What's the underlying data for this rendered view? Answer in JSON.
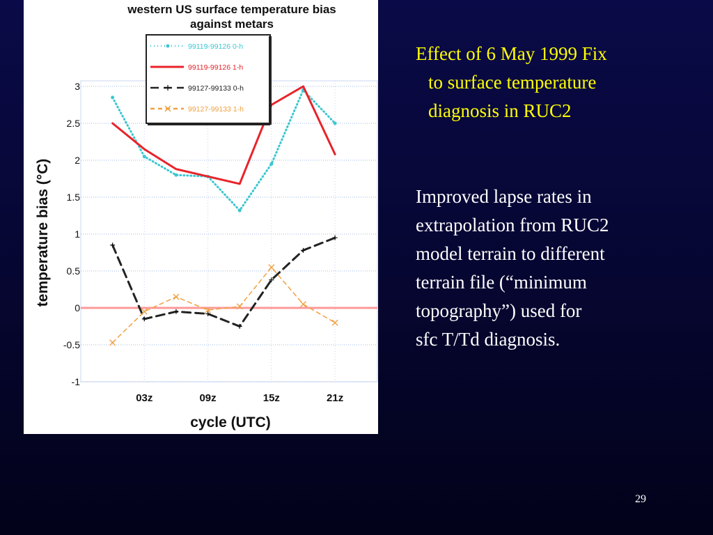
{
  "slide": {
    "title_lines": [
      "Effect of 6 May 1999 Fix",
      "to surface temperature",
      "diagnosis in RUC2"
    ],
    "body_lines": [
      "Improved lapse rates in",
      "extrapolation from RUC2",
      "model terrain to different",
      "terrain file (“minimum",
      "topography”) used for",
      "sfc T/Td diagnosis."
    ],
    "page_number": "29",
    "title_color": "#ffff00",
    "body_color": "#ffffff"
  },
  "chart_data": {
    "type": "line",
    "title": [
      "western US surface temperature bias",
      "against metars"
    ],
    "xlabel": "cycle (UTC)",
    "ylabel": "temperature bias (°C)",
    "x_tick_labels": [
      "03z",
      "09z",
      "15z",
      "21z"
    ],
    "x_tick_positions": [
      3,
      9,
      15,
      21
    ],
    "xlim": [
      -3,
      25
    ],
    "ylim": [
      -1,
      3
    ],
    "y_ticks": [
      -1,
      -0.5,
      0,
      0.5,
      1,
      1.5,
      2,
      2.5,
      3
    ],
    "y_tick_labels": [
      "-1",
      "-0.5",
      "0",
      "0.5",
      "1",
      "1.5",
      "2",
      "2.5",
      "3"
    ],
    "grid": "dotted, light blue",
    "legend_position": "top, inside plot",
    "reference_line": {
      "y": 0,
      "color": "#ff8a8a"
    },
    "series": [
      {
        "name": "99119-99126 0-h",
        "color": "#3cc7d0",
        "style": "dotted",
        "marker": "dot",
        "x": [
          0,
          3,
          6,
          9,
          12,
          15,
          18,
          21
        ],
        "y": [
          2.85,
          2.05,
          1.8,
          1.78,
          1.32,
          1.95,
          2.95,
          2.5
        ]
      },
      {
        "name": "99119-99126 1-h",
        "color": "#e8232a",
        "style": "solid",
        "marker": "none",
        "x": [
          0,
          3,
          6,
          9,
          12,
          15,
          18,
          21
        ],
        "y": [
          2.5,
          2.15,
          1.88,
          1.78,
          1.68,
          2.75,
          3.0,
          2.08
        ]
      },
      {
        "name": "99127-99133 0-h",
        "color": "#222222",
        "style": "dashed",
        "marker": "plus",
        "x": [
          0,
          3,
          6,
          9,
          12,
          15,
          18,
          21
        ],
        "y": [
          0.85,
          -0.15,
          -0.05,
          -0.08,
          -0.25,
          0.38,
          0.78,
          0.95
        ]
      },
      {
        "name": "99127-99133 1-h",
        "color": "#f0a040",
        "style": "dashed",
        "marker": "x",
        "x": [
          0,
          3,
          6,
          9,
          12,
          15,
          18,
          21
        ],
        "y": [
          -0.47,
          -0.05,
          0.15,
          -0.03,
          0.02,
          0.55,
          0.05,
          -0.2
        ]
      }
    ]
  }
}
